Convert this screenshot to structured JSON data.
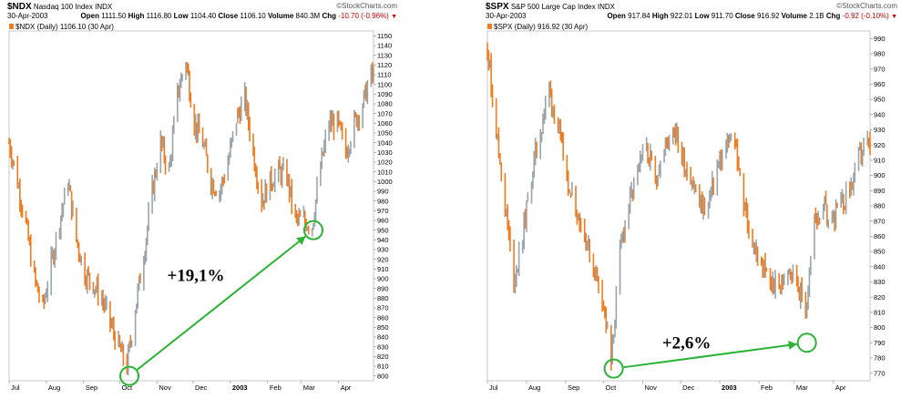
{
  "charts": [
    {
      "symbol": "$NDX",
      "name": "Nasdaq 100 Index",
      "exchange": "INDX",
      "date": "30-Apr-2003",
      "brand": "©StockCharts.com",
      "open_label": "Open",
      "open": "1111.50",
      "high_label": "High",
      "high": "1116.80",
      "low_label": "Low",
      "low": "1104.40",
      "close_label": "Close",
      "close": "1106.10",
      "volume_label": "Volume",
      "volume": "840.3M",
      "chg_label": "Chg",
      "chg": "-10.70 (-0.96%)",
      "legend": "$NDX (Daily) 1106.10 (30 Apr)",
      "annotation": "+19,1%"
    },
    {
      "symbol": "$SPX",
      "name": "S&P 500 Large Cap Index",
      "exchange": "INDX",
      "date": "30-Apr-2003",
      "brand": "©StockCharts.com",
      "open_label": "Open",
      "open": "917.84",
      "high_label": "High",
      "high": "922.01",
      "low_label": "Low",
      "low": "911.70",
      "close_label": "Close",
      "close": "916.92",
      "volume_label": "Volume",
      "volume": "2.1B",
      "chg_label": "Chg",
      "chg": "-0.92 (-0.10%)",
      "legend": "$SPX (Daily) 916.92 (30 Apr)",
      "annotation": "+2,6%"
    }
  ],
  "chart_data": [
    {
      "type": "line",
      "title": "$NDX Nasdaq 100 Index INDX",
      "x": [
        "2002-07-01",
        "2002-07-08",
        "2002-07-15",
        "2002-07-22",
        "2002-07-29",
        "2002-08-05",
        "2002-08-12",
        "2002-08-19",
        "2002-08-26",
        "2002-09-02",
        "2002-09-09",
        "2002-09-16",
        "2002-09-23",
        "2002-09-30",
        "2002-10-07",
        "2002-10-14",
        "2002-10-21",
        "2002-10-28",
        "2002-11-04",
        "2002-11-11",
        "2002-11-18",
        "2002-11-25",
        "2002-12-02",
        "2002-12-09",
        "2002-12-16",
        "2002-12-23",
        "2002-12-30",
        "2003-01-06",
        "2003-01-13",
        "2003-01-20",
        "2003-01-27",
        "2003-02-03",
        "2003-02-10",
        "2003-02-17",
        "2003-02-24",
        "2003-03-03",
        "2003-03-10",
        "2003-03-17",
        "2003-03-24",
        "2003-03-31",
        "2003-04-07",
        "2003-04-14",
        "2003-04-21",
        "2003-04-28",
        "2003-04-30"
      ],
      "series": [
        {
          "values": [
            1040,
            1000,
            955,
            900,
            870,
            915,
            960,
            1000,
            940,
            905,
            895,
            880,
            855,
            830,
            810,
            870,
            925,
            990,
            1040,
            1010,
            1090,
            1125,
            1060,
            1040,
            1000,
            990,
            1020,
            1065,
            1085,
            1030,
            980,
            1000,
            1010,
            1005,
            960,
            960,
            955,
            1015,
            1060,
            1060,
            1030,
            1060,
            1080,
            1110,
            1106
          ]
        }
      ],
      "ylim": [
        795,
        1155
      ],
      "yticks": [
        800,
        810,
        820,
        830,
        840,
        850,
        860,
        870,
        880,
        890,
        900,
        910,
        920,
        930,
        940,
        950,
        960,
        970,
        980,
        990,
        1000,
        1010,
        1020,
        1030,
        1040,
        1050,
        1060,
        1070,
        1080,
        1090,
        1100,
        1110,
        1120,
        1130,
        1140,
        1150
      ],
      "xticks": [
        {
          "label": "Jul",
          "date": "2002-07-01"
        },
        {
          "label": "Aug",
          "date": "2002-08-01"
        },
        {
          "label": "Sep",
          "date": "2002-09-01"
        },
        {
          "label": "Oct",
          "date": "2002-10-01"
        },
        {
          "label": "Nov",
          "date": "2002-11-01"
        },
        {
          "label": "Dec",
          "date": "2002-12-01"
        },
        {
          "label": "2003",
          "date": "2003-01-01",
          "bold": true
        },
        {
          "label": "Feb",
          "date": "2003-02-01"
        },
        {
          "label": "Mar",
          "date": "2003-03-01"
        },
        {
          "label": "Apr",
          "date": "2003-04-01"
        }
      ],
      "annotation": {
        "text": "+19,1%",
        "from": {
          "date": "2002-10-09",
          "value": 800
        },
        "to": {
          "date": "2003-03-11",
          "value": 950
        }
      },
      "colors": {
        "up": "#9aa4ad",
        "down": "#f07c1e",
        "arrow": "#2bb336"
      },
      "grid": false,
      "axis_side": "right"
    },
    {
      "type": "line",
      "title": "$SPX S&P 500 Large Cap Index INDX",
      "x": [
        "2002-07-01",
        "2002-07-08",
        "2002-07-15",
        "2002-07-22",
        "2002-07-29",
        "2002-08-05",
        "2002-08-12",
        "2002-08-19",
        "2002-08-26",
        "2002-09-02",
        "2002-09-09",
        "2002-09-16",
        "2002-09-23",
        "2002-09-30",
        "2002-10-07",
        "2002-10-14",
        "2002-10-21",
        "2002-10-28",
        "2002-11-04",
        "2002-11-11",
        "2002-11-18",
        "2002-11-25",
        "2002-12-02",
        "2002-12-09",
        "2002-12-16",
        "2002-12-23",
        "2002-12-30",
        "2003-01-06",
        "2003-01-13",
        "2003-01-20",
        "2003-01-27",
        "2003-02-03",
        "2003-02-10",
        "2003-02-17",
        "2003-02-24",
        "2003-03-03",
        "2003-03-10",
        "2003-03-17",
        "2003-03-24",
        "2003-03-31",
        "2003-04-07",
        "2003-04-14",
        "2003-04-21",
        "2003-04-28",
        "2003-04-30"
      ],
      "series": [
        {
          "values": [
            985,
            930,
            880,
            830,
            860,
            900,
            930,
            955,
            930,
            900,
            880,
            860,
            840,
            820,
            775,
            850,
            880,
            900,
            920,
            900,
            915,
            935,
            910,
            900,
            880,
            880,
            905,
            920,
            925,
            880,
            855,
            840,
            830,
            825,
            840,
            830,
            810,
            870,
            880,
            870,
            880,
            890,
            910,
            920,
            917
          ]
        }
      ],
      "ylim": [
        765,
        995
      ],
      "yticks": [
        770,
        780,
        790,
        800,
        810,
        820,
        830,
        840,
        850,
        860,
        870,
        880,
        890,
        900,
        910,
        920,
        930,
        940,
        950,
        960,
        970,
        980,
        990
      ],
      "xticks": [
        {
          "label": "Jul",
          "date": "2002-07-01"
        },
        {
          "label": "Aug",
          "date": "2002-08-01"
        },
        {
          "label": "Sep",
          "date": "2002-09-01"
        },
        {
          "label": "Oct",
          "date": "2002-10-01"
        },
        {
          "label": "Nov",
          "date": "2002-11-01"
        },
        {
          "label": "Dec",
          "date": "2002-12-01"
        },
        {
          "label": "2003",
          "date": "2003-01-01",
          "bold": true
        },
        {
          "label": "Feb",
          "date": "2003-02-01"
        },
        {
          "label": "Mar",
          "date": "2003-03-01"
        },
        {
          "label": "Apr",
          "date": "2003-04-01"
        }
      ],
      "annotation": {
        "text": "+2,6%",
        "from": {
          "date": "2002-10-09",
          "value": 773
        },
        "to": {
          "date": "2003-03-11",
          "value": 790
        }
      },
      "colors": {
        "up": "#9aa4ad",
        "down": "#f07c1e",
        "arrow": "#2bb336"
      },
      "grid": false,
      "axis_side": "right"
    }
  ]
}
